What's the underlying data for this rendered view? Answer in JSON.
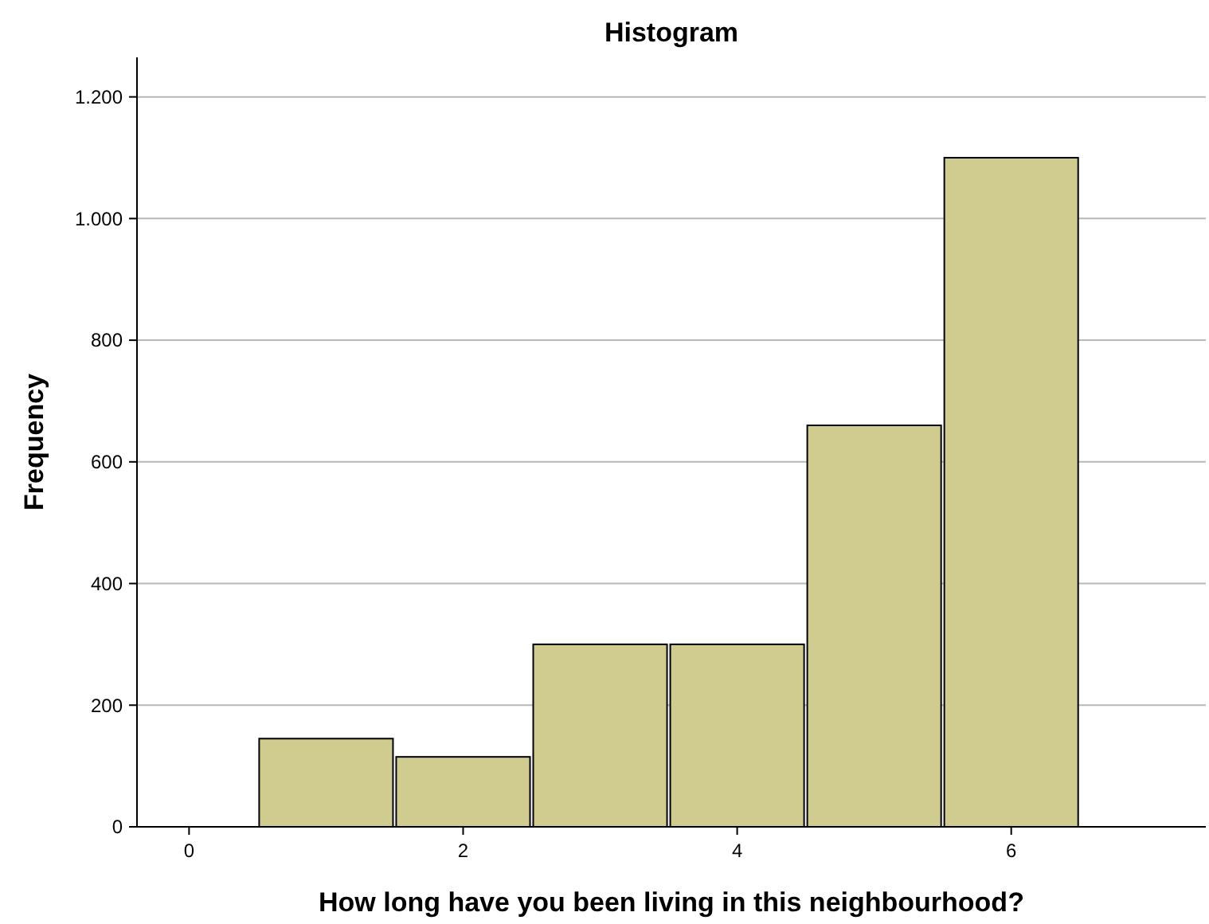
{
  "chart_data": {
    "type": "histogram",
    "title": "Histogram",
    "xlabel": "How long have you been living in this neighbourhood?",
    "ylabel": "Frequency",
    "bins": [
      0.5,
      1.5,
      2.5,
      3.5,
      4.5,
      5.5,
      6.5
    ],
    "values": [
      145,
      115,
      300,
      300,
      660,
      1100
    ],
    "color": "#d0cb8f",
    "xlim": [
      -0.38,
      7.42
    ],
    "xticks": [
      0,
      2,
      4,
      6
    ],
    "ylim": [
      0,
      1265
    ],
    "yticks": [
      0,
      200,
      400,
      600,
      800,
      {
        "value": 1000,
        "label": "1.000"
      },
      {
        "value": 1200,
        "label": "1.200"
      }
    ],
    "grid": "y"
  }
}
